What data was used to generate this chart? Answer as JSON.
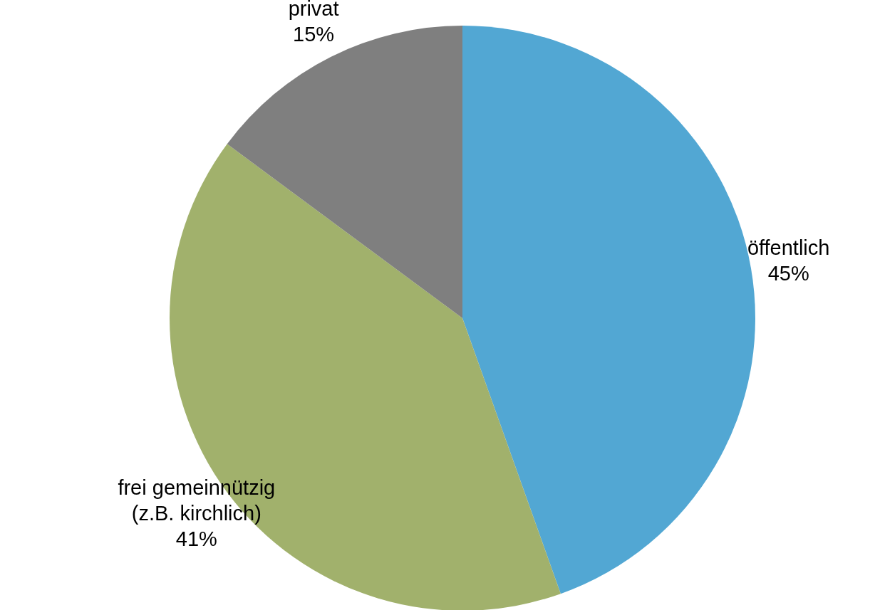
{
  "chart_data": {
    "type": "pie",
    "categories": [
      "öffentlich",
      "frei gemeinnützig\n(z.B. kirchlich)",
      "privat"
    ],
    "values": [
      45,
      41,
      15
    ],
    "colors": [
      "#52a7d3",
      "#a1b16c",
      "#7f7f7f"
    ],
    "value_labels": [
      "45%",
      "41%",
      "15%"
    ]
  }
}
